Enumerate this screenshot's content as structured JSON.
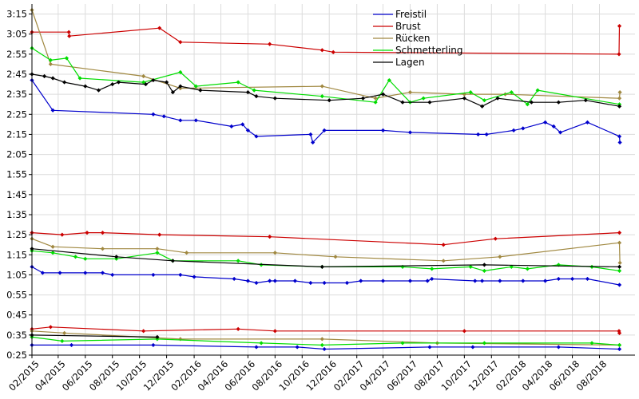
{
  "chart_data": {
    "type": "line",
    "title": "",
    "xlabel": "",
    "ylabel": "",
    "x_type": "date",
    "xlim": [
      "2015-02-01",
      "2018-10-20"
    ],
    "ylim": [
      "0:25",
      "3:20"
    ],
    "grid": true,
    "legend_position": "top-right",
    "x_tick_labels": [
      "02/2015",
      "04/2015",
      "06/2015",
      "08/2015",
      "10/2015",
      "12/2015",
      "02/2016",
      "04/2016",
      "06/2016",
      "08/2016",
      "10/2016",
      "12/2016",
      "02/2017",
      "04/2017",
      "06/2017",
      "08/2017",
      "10/2017",
      "12/2017",
      "02/2018",
      "04/2018",
      "06/2018",
      "08/2018"
    ],
    "y_tick_labels": [
      "0:25",
      "0:35",
      "0:45",
      "0:55",
      "1:05",
      "1:15",
      "1:25",
      "1:35",
      "1:45",
      "1:55",
      "2:05",
      "2:15",
      "2:25",
      "2:35",
      "2:45",
      "2:55",
      "3:05",
      "3:15"
    ],
    "series": [
      {
        "name": "Freistil",
        "color": "#0000cc",
        "groups": [
          [
            [
              "2015-02-01",
              "2:42"
            ],
            [
              "2015-03-20",
              "2:27"
            ],
            [
              "2015-11-01",
              "2:25"
            ],
            [
              "2015-11-25",
              "2:24"
            ],
            [
              "2016-01-01",
              "2:22"
            ],
            [
              "2016-02-05",
              "2:22"
            ],
            [
              "2016-04-25",
              "2:19"
            ],
            [
              "2016-05-20",
              "2:20"
            ],
            [
              "2016-06-01",
              "2:17"
            ],
            [
              "2016-06-20",
              "2:14"
            ],
            [
              "2016-10-20",
              "2:15"
            ],
            [
              "2016-10-25",
              "2:11"
            ],
            [
              "2016-11-20",
              "2:17"
            ],
            [
              "2017-04-01",
              "2:17"
            ],
            [
              "2017-06-01",
              "2:16"
            ],
            [
              "2017-11-01",
              "2:15"
            ],
            [
              "2017-11-20",
              "2:15"
            ],
            [
              "2018-01-20",
              "2:17"
            ],
            [
              "2018-02-10",
              "2:18"
            ],
            [
              "2018-04-01",
              "2:21"
            ],
            [
              "2018-04-20",
              "2:19"
            ],
            [
              "2018-05-05",
              "2:16"
            ],
            [
              "2018-07-05",
              "2:21"
            ],
            [
              "2018-09-15",
              "2:14"
            ],
            [
              "2018-09-16",
              "2:11"
            ]
          ],
          [
            [
              "2015-02-01",
              "1:09"
            ],
            [
              "2015-02-25",
              "1:06"
            ],
            [
              "2015-04-05",
              "1:06"
            ],
            [
              "2015-06-01",
              "1:06"
            ],
            [
              "2015-07-10",
              "1:06"
            ],
            [
              "2015-08-01",
              "1:05"
            ],
            [
              "2015-11-01",
              "1:05"
            ],
            [
              "2016-01-01",
              "1:05"
            ],
            [
              "2016-02-01",
              "1:04"
            ],
            [
              "2016-05-01",
              "1:03"
            ],
            [
              "2016-06-01",
              "1:02"
            ],
            [
              "2016-06-20",
              "1:01"
            ],
            [
              "2016-07-20",
              "1:02"
            ],
            [
              "2016-08-01",
              "1:02"
            ],
            [
              "2016-09-15",
              "1:02"
            ],
            [
              "2016-10-20",
              "1:01"
            ],
            [
              "2016-11-20",
              "1:01"
            ],
            [
              "2017-01-10",
              "1:01"
            ],
            [
              "2017-02-10",
              "1:02"
            ],
            [
              "2017-04-01",
              "1:02"
            ],
            [
              "2017-06-01",
              "1:02"
            ],
            [
              "2017-07-10",
              "1:02"
            ],
            [
              "2017-07-20",
              "1:03"
            ],
            [
              "2017-10-25",
              "1:02"
            ],
            [
              "2017-11-10",
              "1:02"
            ],
            [
              "2017-12-20",
              "1:02"
            ],
            [
              "2018-02-10",
              "1:02"
            ],
            [
              "2018-04-01",
              "1:02"
            ],
            [
              "2018-05-01",
              "1:03"
            ],
            [
              "2018-06-01",
              "1:03"
            ],
            [
              "2018-07-05",
              "1:03"
            ],
            [
              "2018-09-15",
              "1:00"
            ]
          ],
          [
            [
              "2015-02-01",
              "0:30"
            ],
            [
              "2015-05-01",
              "0:30"
            ],
            [
              "2015-11-01",
              "0:30"
            ],
            [
              "2016-06-20",
              "0:29"
            ],
            [
              "2016-09-20",
              "0:29"
            ],
            [
              "2016-11-20",
              "0:28"
            ],
            [
              "2017-07-15",
              "0:29"
            ],
            [
              "2017-10-20",
              "0:29"
            ],
            [
              "2018-05-01",
              "0:29"
            ],
            [
              "2018-09-15",
              "0:28"
            ]
          ]
        ]
      },
      {
        "name": "Brust",
        "color": "#cc0000",
        "groups": [
          [
            [
              "2015-02-01",
              "3:06"
            ],
            [
              "2015-04-25",
              "3:06"
            ],
            [
              "2015-04-26",
              "3:04"
            ],
            [
              "2015-11-15",
              "3:08"
            ],
            [
              "2016-01-01",
              "3:01"
            ],
            [
              "2016-07-20",
              "3:00"
            ],
            [
              "2016-11-15",
              "2:57"
            ],
            [
              "2016-12-10",
              "2:56"
            ],
            [
              "2018-09-14",
              "2:55"
            ],
            [
              "2018-09-15",
              "3:09"
            ]
          ],
          [
            [
              "2015-02-01",
              "1:26"
            ],
            [
              "2015-04-10",
              "1:25"
            ],
            [
              "2015-06-05",
              "1:26"
            ],
            [
              "2015-07-10",
              "1:26"
            ],
            [
              "2015-11-15",
              "1:25"
            ],
            [
              "2016-07-20",
              "1:24"
            ],
            [
              "2017-08-15",
              "1:20"
            ],
            [
              "2017-12-10",
              "1:23"
            ],
            [
              "2018-09-15",
              "1:26"
            ]
          ],
          [
            [
              "2015-02-01",
              "0:38"
            ],
            [
              "2015-03-15",
              "0:39"
            ],
            [
              "2015-10-10",
              "0:37"
            ],
            [
              "2016-05-10",
              "0:38"
            ],
            [
              "2016-08-01",
              "0:37"
            ],
            [
              "2017-10-01",
              "0:37"
            ],
            [
              "2018-09-14",
              "0:37"
            ],
            [
              "2018-09-15",
              "0:36"
            ]
          ]
        ]
      },
      {
        "name": "Rücken",
        "color": "#a08840",
        "groups": [
          [
            [
              "2015-02-01",
              "3:17"
            ],
            [
              "2015-03-15",
              "2:50"
            ],
            [
              "2015-10-10",
              "2:44"
            ],
            [
              "2016-01-01",
              "2:38"
            ],
            [
              "2016-11-15",
              "2:39"
            ],
            [
              "2017-03-15",
              "2:33"
            ],
            [
              "2017-06-01",
              "2:36"
            ],
            [
              "2017-10-01",
              "2:35"
            ],
            [
              "2018-01-01",
              "2:35"
            ],
            [
              "2018-09-15",
              "2:33"
            ],
            [
              "2018-09-16",
              "2:36"
            ]
          ],
          [
            [
              "2015-02-01",
              "1:23"
            ],
            [
              "2015-03-20",
              "1:19"
            ],
            [
              "2015-07-10",
              "1:18"
            ],
            [
              "2015-11-10",
              "1:18"
            ],
            [
              "2016-01-15",
              "1:16"
            ],
            [
              "2016-08-01",
              "1:16"
            ],
            [
              "2016-12-15",
              "1:14"
            ],
            [
              "2017-08-15",
              "1:12"
            ],
            [
              "2017-12-20",
              "1:14"
            ],
            [
              "2018-09-15",
              "1:21"
            ],
            [
              "2018-09-16",
              "1:11"
            ]
          ],
          [
            [
              "2015-02-01",
              "0:37"
            ],
            [
              "2015-04-15",
              "0:36"
            ],
            [
              "2016-01-01",
              "0:33"
            ],
            [
              "2016-11-15",
              "0:33"
            ],
            [
              "2017-08-01",
              "0:31"
            ],
            [
              "2018-09-15",
              "0:30"
            ]
          ]
        ]
      },
      {
        "name": "Schmetterling",
        "color": "#00dd00",
        "groups": [
          [
            [
              "2015-02-01",
              "2:58"
            ],
            [
              "2015-03-15",
              "2:52"
            ],
            [
              "2015-04-20",
              "2:53"
            ],
            [
              "2015-05-20",
              "2:43"
            ],
            [
              "2015-10-10",
              "2:41"
            ],
            [
              "2016-01-01",
              "2:46"
            ],
            [
              "2016-02-05",
              "2:39"
            ],
            [
              "2016-05-10",
              "2:41"
            ],
            [
              "2016-06-15",
              "2:37"
            ],
            [
              "2016-11-15",
              "2:34"
            ],
            [
              "2017-03-15",
              "2:31"
            ],
            [
              "2017-04-15",
              "2:42"
            ],
            [
              "2017-06-01",
              "2:31"
            ],
            [
              "2017-07-01",
              "2:33"
            ],
            [
              "2017-10-15",
              "2:36"
            ],
            [
              "2017-11-15",
              "2:32"
            ],
            [
              "2018-01-15",
              "2:36"
            ],
            [
              "2018-02-20",
              "2:30"
            ],
            [
              "2018-03-15",
              "2:37"
            ],
            [
              "2018-09-15",
              "2:30"
            ]
          ],
          [
            [
              "2015-02-01",
              "1:17"
            ],
            [
              "2015-03-20",
              "1:16"
            ],
            [
              "2015-05-10",
              "1:14"
            ],
            [
              "2015-06-01",
              "1:13"
            ],
            [
              "2015-08-10",
              "1:13"
            ],
            [
              "2015-11-10",
              "1:16"
            ],
            [
              "2015-12-15",
              "1:12"
            ],
            [
              "2016-05-10",
              "1:12"
            ],
            [
              "2016-07-01",
              "1:10"
            ],
            [
              "2016-11-15",
              "1:09"
            ],
            [
              "2017-05-15",
              "1:09"
            ],
            [
              "2017-07-20",
              "1:08"
            ],
            [
              "2017-10-15",
              "1:09"
            ],
            [
              "2017-11-15",
              "1:07"
            ],
            [
              "2018-01-15",
              "1:09"
            ],
            [
              "2018-02-20",
              "1:08"
            ],
            [
              "2018-05-01",
              "1:10"
            ],
            [
              "2018-07-15",
              "1:09"
            ],
            [
              "2018-09-15",
              "1:07"
            ]
          ],
          [
            [
              "2015-02-01",
              "0:34"
            ],
            [
              "2015-04-10",
              "0:32"
            ],
            [
              "2015-11-10",
              "0:33"
            ],
            [
              "2016-07-01",
              "0:31"
            ],
            [
              "2016-11-15",
              "0:30"
            ],
            [
              "2017-05-15",
              "0:31"
            ],
            [
              "2017-11-15",
              "0:31"
            ],
            [
              "2018-07-15",
              "0:31"
            ],
            [
              "2018-09-15",
              "0:30"
            ]
          ]
        ]
      },
      {
        "name": "Lagen",
        "color": "#000000",
        "groups": [
          [
            [
              "2015-02-01",
              "2:45"
            ],
            [
              "2015-03-01",
              "2:44"
            ],
            [
              "2015-03-20",
              "2:43"
            ],
            [
              "2015-04-15",
              "2:41"
            ],
            [
              "2015-06-01",
              "2:39"
            ],
            [
              "2015-07-01",
              "2:37"
            ],
            [
              "2015-08-01",
              "2:40"
            ],
            [
              "2015-08-15",
              "2:41"
            ],
            [
              "2015-10-15",
              "2:40"
            ],
            [
              "2015-11-01",
              "2:42"
            ],
            [
              "2015-12-01",
              "2:41"
            ],
            [
              "2015-12-15",
              "2:36"
            ],
            [
              "2016-01-01",
              "2:39"
            ],
            [
              "2016-02-15",
              "2:37"
            ],
            [
              "2016-06-01",
              "2:36"
            ],
            [
              "2016-06-20",
              "2:34"
            ],
            [
              "2016-08-01",
              "2:33"
            ],
            [
              "2016-12-01",
              "2:32"
            ],
            [
              "2017-02-15",
              "2:33"
            ],
            [
              "2017-04-01",
              "2:35"
            ],
            [
              "2017-05-15",
              "2:31"
            ],
            [
              "2017-07-15",
              "2:31"
            ],
            [
              "2017-10-01",
              "2:33"
            ],
            [
              "2017-11-10",
              "2:29"
            ],
            [
              "2017-12-15",
              "2:33"
            ],
            [
              "2018-03-01",
              "2:31"
            ],
            [
              "2018-05-01",
              "2:31"
            ],
            [
              "2018-07-01",
              "2:32"
            ],
            [
              "2018-09-15",
              "2:29"
            ]
          ],
          [
            [
              "2015-02-01",
              "1:18"
            ],
            [
              "2015-08-10",
              "1:14"
            ],
            [
              "2015-12-15",
              "1:12"
            ],
            [
              "2016-11-15",
              "1:09"
            ],
            [
              "2017-11-15",
              "1:10"
            ],
            [
              "2018-09-15",
              "1:09"
            ]
          ],
          [
            [
              "2015-02-01",
              "0:35"
            ],
            [
              "2015-11-10",
              "0:34"
            ]
          ]
        ]
      }
    ]
  }
}
